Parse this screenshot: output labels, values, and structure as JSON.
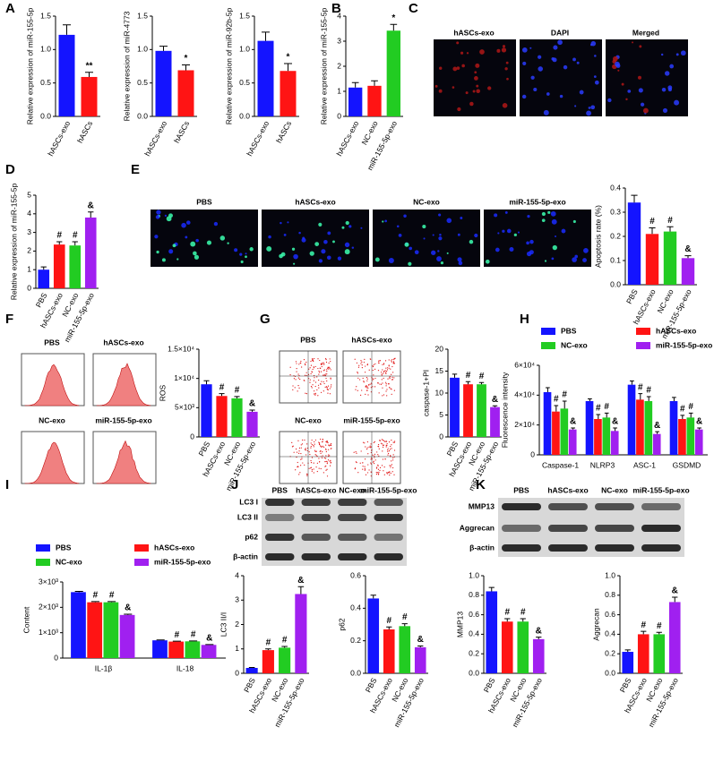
{
  "letters": [
    "A",
    "B",
    "C",
    "D",
    "E",
    "F",
    "G",
    "H",
    "I",
    "J",
    "K"
  ],
  "images": {
    "C": [
      "hASCs-exo",
      "DAPI",
      "Merged"
    ],
    "E": [
      "PBS",
      "hASCs-exo",
      "NC-exo",
      "miR-155-5p-exo"
    ],
    "F": [
      "PBS",
      "hASCs-exo",
      "NC-exo",
      "miR-155-5p-exo"
    ],
    "G": [
      "PBS",
      "hASCs-exo",
      "NC-exo",
      "miR-155-5p-exo"
    ],
    "J_rows": [
      "LC3 I",
      "LC3 II",
      "p62",
      "β-actin"
    ],
    "J_cols": [
      "PBS",
      "hASCs-exo",
      "NC-exo",
      "miR-155-5p-exo"
    ],
    "K_rows": [
      "MMP13",
      "Aggrecan",
      "β-actin"
    ],
    "K_cols": [
      "PBS",
      "hASCs-exo",
      "NC-exo",
      "miR-155-5p-exo"
    ]
  },
  "chart_data": [
    {
      "type": "bar",
      "ylabel": "Relative expression of miR-155-5p",
      "categories": [
        "hASCs-exo",
        "hASCs"
      ],
      "values": [
        1.22,
        0.59
      ],
      "errors": [
        0.15,
        0.07
      ],
      "colors": [
        "#1414ff",
        "#ff1414"
      ],
      "annotations": [
        null,
        "**"
      ],
      "ylim": [
        0,
        1.5
      ],
      "yticks": [
        {
          "value": 0,
          "label": "0.0"
        },
        0.5,
        {
          "value": 1,
          "label": "1.0"
        },
        1.5
      ],
      "rotate_labels": true
    },
    {
      "type": "bar",
      "ylabel": "Relative expression of miR-4773",
      "categories": [
        "hASCs-exo",
        "hASCs"
      ],
      "values": [
        0.98,
        0.69
      ],
      "errors": [
        0.07,
        0.08
      ],
      "colors": [
        "#1414ff",
        "#ff1414"
      ],
      "annotations": [
        null,
        "*"
      ],
      "ylim": [
        0,
        1.5
      ],
      "yticks": [
        {
          "value": 0,
          "label": "0.0"
        },
        0.5,
        {
          "value": 1,
          "label": "1.0"
        },
        1.5
      ],
      "rotate_labels": true
    },
    {
      "type": "bar",
      "ylabel": "Relative expression of miR-92b-5p",
      "categories": [
        "hASCs-exo",
        "hASCs"
      ],
      "values": [
        1.13,
        0.68
      ],
      "errors": [
        0.13,
        0.11
      ],
      "colors": [
        "#1414ff",
        "#ff1414"
      ],
      "annotations": [
        null,
        "*"
      ],
      "ylim": [
        0,
        1.5
      ],
      "yticks": [
        {
          "value": 0,
          "label": "0.0"
        },
        0.5,
        {
          "value": 1,
          "label": "1.0"
        },
        1.5
      ],
      "rotate_labels": true
    },
    {
      "type": "bar",
      "ylabel": "Relative expression of miR-155-5p",
      "categories": [
        "hASCs-exo",
        "NC-exo",
        "miR-155-5p-exo"
      ],
      "values": [
        1.15,
        1.22,
        3.42
      ],
      "errors": [
        0.2,
        0.2,
        0.25
      ],
      "colors": [
        "#1414ff",
        "#ff1414",
        "#22cc22"
      ],
      "annotations": [
        null,
        null,
        "*"
      ],
      "ylim": [
        0,
        4
      ],
      "yticks": [
        0,
        1,
        2,
        3,
        4
      ],
      "rotate_labels": true
    },
    {
      "type": "bar",
      "ylabel": "Relative expression of miR-155-5p",
      "categories": [
        "PBS",
        "hASCs-exo",
        "NC-exo",
        "miR-155-5p-exo"
      ],
      "values": [
        1.0,
        2.35,
        2.3,
        3.8
      ],
      "errors": [
        0.15,
        0.15,
        0.2,
        0.3
      ],
      "colors": [
        "#1414ff",
        "#ff1414",
        "#22cc22",
        "#a020f0"
      ],
      "annotations": [
        null,
        "#",
        "#",
        "&"
      ],
      "ylim": [
        0,
        5
      ],
      "yticks": [
        0,
        1,
        2,
        3,
        4,
        5
      ],
      "rotate_labels": true
    },
    {
      "type": "bar",
      "ylabel": "Apoptosis rate (%)",
      "categories": [
        "PBS",
        "hASCs-exo",
        "NC-exo",
        "miR-155-5p-exo"
      ],
      "values": [
        0.34,
        0.21,
        0.22,
        0.11
      ],
      "errors": [
        0.03,
        0.025,
        0.02,
        0.01
      ],
      "colors": [
        "#1414ff",
        "#ff1414",
        "#22cc22",
        "#a020f0"
      ],
      "annotations": [
        null,
        "#",
        "#",
        "&"
      ],
      "ylim": [
        0,
        0.4
      ],
      "yticks": [
        {
          "value": 0,
          "label": "0.0"
        },
        0.1,
        0.2,
        0.3,
        0.4
      ],
      "rotate_labels": true
    },
    {
      "type": "bar",
      "ylabel": "ROS",
      "categories": [
        "PBS",
        "hASCs-exo",
        "NC-exo",
        "miR-155-5p-exo"
      ],
      "values": [
        9000,
        7000,
        6600,
        4300
      ],
      "errors": [
        600,
        400,
        300,
        300
      ],
      "colors": [
        "#1414ff",
        "#ff1414",
        "#22cc22",
        "#a020f0"
      ],
      "annotations": [
        null,
        "#",
        "#",
        "&"
      ],
      "ylim": [
        0,
        15000
      ],
      "yticks": [
        0,
        {
          "value": 5000,
          "label": "5×10³"
        },
        {
          "value": 10000,
          "label": "1×10⁴"
        },
        {
          "value": 15000,
          "label": "1.5×10⁴"
        }
      ],
      "rotate_labels": true
    },
    {
      "type": "bar",
      "ylabel": "caspase-1+PI",
      "categories": [
        "PBS",
        "hASCs-exo",
        "NC-exo",
        "miR-155-5p-exo"
      ],
      "values": [
        13.5,
        12,
        12,
        6.8
      ],
      "errors": [
        0.8,
        0.6,
        0.4,
        0.3
      ],
      "colors": [
        "#1414ff",
        "#ff1414",
        "#22cc22",
        "#a020f0"
      ],
      "annotations": [
        null,
        "#",
        "#",
        "&"
      ],
      "ylim": [
        0,
        20
      ],
      "yticks": [
        0,
        5,
        10,
        15,
        20
      ],
      "rotate_labels": true
    },
    {
      "type": "grouped_bar",
      "ylabel": "Fluorescence intensity",
      "categories": [
        "Caspase-1",
        "NLRP3",
        "ASC-1",
        "GSDMD"
      ],
      "legend": "top",
      "series": [
        {
          "name": "PBS",
          "color": "#1414ff",
          "values": [
            42000,
            36000,
            47000,
            36000
          ],
          "errors": [
            3000,
            1500,
            2500,
            2500
          ],
          "annotations": [
            null,
            null,
            null,
            null
          ]
        },
        {
          "name": "hASCs-exo",
          "color": "#ff1414",
          "values": [
            29000,
            24000,
            37000,
            24000
          ],
          "errors": [
            4000,
            3000,
            4000,
            2500
          ],
          "annotations": [
            "#",
            "#",
            "#",
            "#"
          ]
        },
        {
          "name": "NC-exo",
          "color": "#22cc22",
          "values": [
            31000,
            25000,
            36000,
            25000
          ],
          "errors": [
            5000,
            3000,
            3000,
            3000
          ],
          "annotations": [
            "#",
            "#",
            "#",
            "#"
          ]
        },
        {
          "name": "miR-155-5p-exo",
          "color": "#a020f0",
          "values": [
            17000,
            16000,
            14000,
            17000
          ],
          "errors": [
            1000,
            2000,
            1500,
            1000
          ],
          "annotations": [
            "&",
            "&",
            "&",
            "&"
          ]
        }
      ],
      "ylim": [
        0,
        60000
      ],
      "yticks": [
        0,
        {
          "value": 20000,
          "label": "2×10⁴"
        },
        {
          "value": 40000,
          "label": "4×10⁴"
        },
        {
          "value": 60000,
          "label": "6×10⁴"
        }
      ],
      "rotate_labels": false
    },
    {
      "type": "grouped_bar",
      "ylabel": "Content",
      "categories": [
        "IL-1β",
        "IL-18"
      ],
      "legend": "top",
      "series": [
        {
          "name": "PBS",
          "color": "#1414ff",
          "values": [
            2600,
            700
          ],
          "errors": [
            30,
            15
          ],
          "annotations": [
            null,
            null
          ]
        },
        {
          "name": "hASCs-exo",
          "color": "#ff1414",
          "values": [
            2200,
            650
          ],
          "errors": [
            30,
            15
          ],
          "annotations": [
            "#",
            "#"
          ]
        },
        {
          "name": "NC-exo",
          "color": "#22cc22",
          "values": [
            2200,
            660
          ],
          "errors": [
            30,
            15
          ],
          "annotations": [
            "#",
            "#"
          ]
        },
        {
          "name": "miR-155-5p-exo",
          "color": "#a020f0",
          "values": [
            1700,
            520
          ],
          "errors": [
            30,
            15
          ],
          "annotations": [
            "&",
            "&"
          ]
        }
      ],
      "ylim": [
        0,
        3000
      ],
      "yticks": [
        0,
        {
          "value": 1000,
          "label": "1×10³"
        },
        {
          "value": 2000,
          "label": "2×10³"
        },
        {
          "value": 3000,
          "label": "3×10³"
        }
      ],
      "rotate_labels": false
    },
    {
      "type": "bar",
      "ylabel": "LC3 II/I",
      "categories": [
        "PBS",
        "hASCs-exo",
        "NC-exo",
        "miR-155-5p-exo"
      ],
      "values": [
        0.22,
        0.95,
        1.05,
        3.25
      ],
      "errors": [
        0.02,
        0.05,
        0.05,
        0.3
      ],
      "colors": [
        "#1414ff",
        "#ff1414",
        "#22cc22",
        "#a020f0"
      ],
      "annotations": [
        null,
        "#",
        "#",
        "&"
      ],
      "ylim": [
        0,
        4
      ],
      "yticks": [
        0,
        1,
        2,
        3,
        4
      ],
      "rotate_labels": true
    },
    {
      "type": "bar",
      "ylabel": "p62",
      "categories": [
        "PBS",
        "hASCs-exo",
        "NC-exo",
        "miR-155-5p-exo"
      ],
      "values": [
        0.46,
        0.27,
        0.29,
        0.16
      ],
      "errors": [
        0.02,
        0.015,
        0.015,
        0.008
      ],
      "colors": [
        "#1414ff",
        "#ff1414",
        "#22cc22",
        "#a020f0"
      ],
      "annotations": [
        null,
        "#",
        "#",
        "&"
      ],
      "ylim": [
        0,
        0.6
      ],
      "yticks": [
        {
          "value": 0,
          "label": "0.0"
        },
        0.2,
        0.4,
        0.6
      ],
      "rotate_labels": true
    },
    {
      "type": "bar",
      "ylabel": "MMP13",
      "categories": [
        "PBS",
        "hASCs-exo",
        "NC-exo",
        "miR-155-5p-exo"
      ],
      "values": [
        0.84,
        0.53,
        0.53,
        0.35
      ],
      "errors": [
        0.04,
        0.03,
        0.03,
        0.02
      ],
      "colors": [
        "#1414ff",
        "#ff1414",
        "#22cc22",
        "#a020f0"
      ],
      "annotations": [
        null,
        "#",
        "#",
        "&"
      ],
      "ylim": [
        0,
        1
      ],
      "yticks": [
        {
          "value": 0,
          "label": "0.0"
        },
        0.2,
        0.4,
        0.6,
        0.8,
        {
          "value": 1,
          "label": "1.0"
        }
      ],
      "rotate_labels": true
    },
    {
      "type": "bar",
      "ylabel": "Aggrecan",
      "categories": [
        "PBS",
        "hASCs-exo",
        "NC-exo",
        "miR-155-5p-exo"
      ],
      "values": [
        0.22,
        0.4,
        0.4,
        0.73
      ],
      "errors": [
        0.02,
        0.03,
        0.02,
        0.05
      ],
      "colors": [
        "#1414ff",
        "#ff1414",
        "#22cc22",
        "#a020f0"
      ],
      "annotations": [
        null,
        "#",
        "#",
        "&"
      ],
      "ylim": [
        0,
        1
      ],
      "yticks": [
        {
          "value": 0,
          "label": "0.0"
        },
        0.2,
        0.4,
        0.6,
        0.8,
        {
          "value": 1,
          "label": "1.0"
        }
      ],
      "rotate_labels": true
    }
  ]
}
